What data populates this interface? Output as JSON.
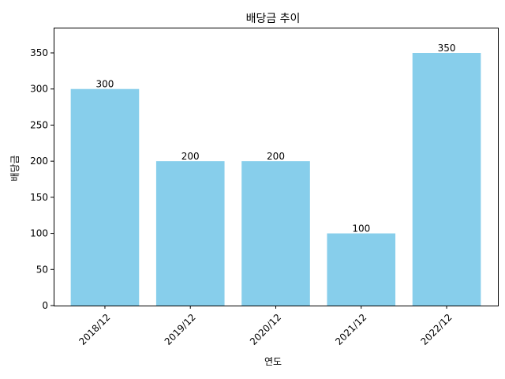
{
  "chart_data": {
    "type": "bar",
    "title": "배당금 추이",
    "xlabel": "연도",
    "ylabel": "배당금",
    "categories": [
      "2018/12",
      "2019/12",
      "2020/12",
      "2021/12",
      "2022/12"
    ],
    "values": [
      300,
      200,
      200,
      100,
      350
    ],
    "data_labels": [
      "300",
      "200",
      "200",
      "100",
      "350"
    ],
    "ylim": [
      0,
      385
    ],
    "yticks": [
      0,
      50,
      100,
      150,
      200,
      250,
      300,
      350
    ],
    "ytick_labels": [
      "0",
      "50",
      "100",
      "150",
      "200",
      "250",
      "300",
      "350"
    ],
    "grid": false,
    "bar_color": "#87ceeb"
  }
}
